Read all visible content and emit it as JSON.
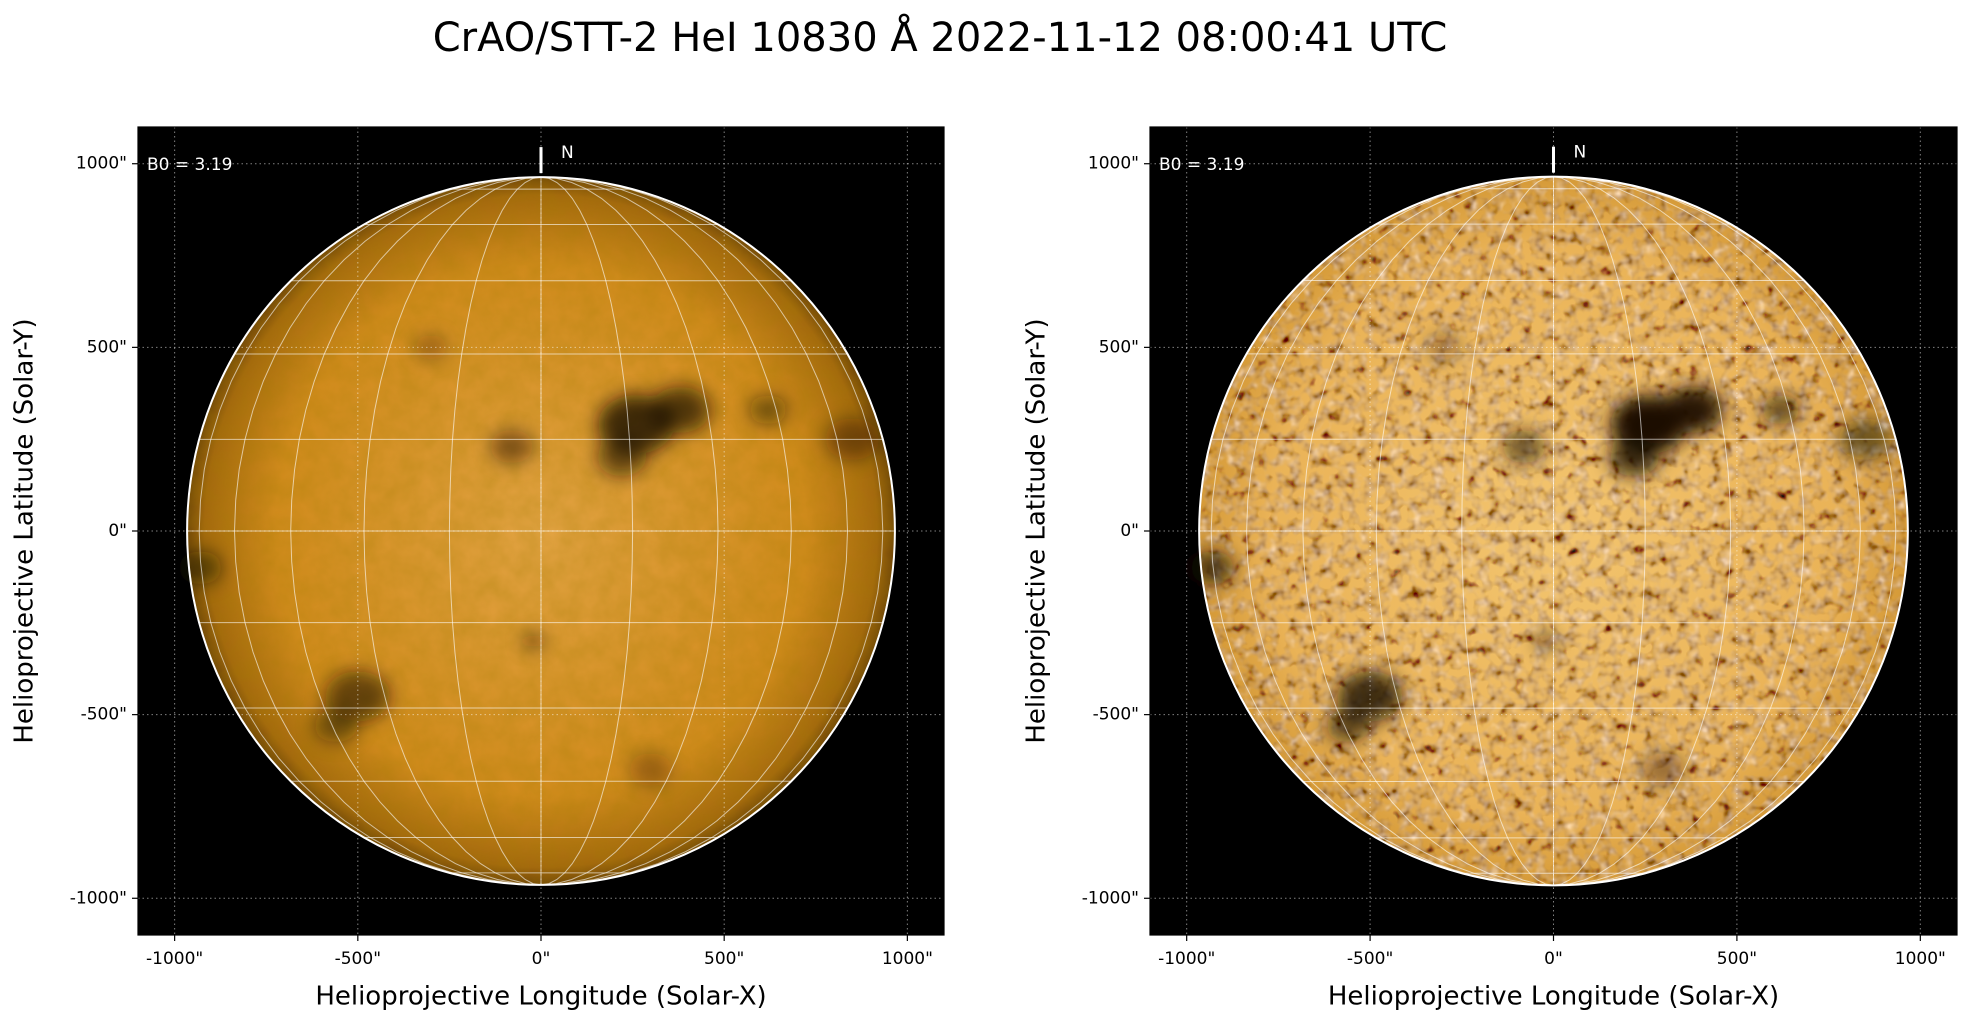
{
  "title": "CrAO/STT-2 HeI 10830 Å 2022-11-12 08:00:41 UTC",
  "chart_data": [
    {
      "type": "image",
      "x_label": "Helioprojective Longitude (Solar-X)",
      "y_label": "Helioprojective Latitude (Solar-Y)",
      "annotation": "B0 = 3.19",
      "north_label": "N",
      "grid": true,
      "xlim": [
        -1100,
        1100
      ],
      "ylim": [
        -1100,
        1100
      ],
      "xticks": [
        {
          "value": -1000,
          "label": "-1000\""
        },
        {
          "value": -500,
          "label": "-500\""
        },
        {
          "value": 0,
          "label": "0\""
        },
        {
          "value": 500,
          "label": "500\""
        },
        {
          "value": 1000,
          "label": "1000\""
        }
      ],
      "yticks": [
        {
          "value": -1000,
          "label": "-1000\""
        },
        {
          "value": -500,
          "label": "-500\""
        },
        {
          "value": 0,
          "label": "0\""
        },
        {
          "value": 500,
          "label": "500\""
        },
        {
          "value": 1000,
          "label": "1000\""
        }
      ]
    },
    {
      "type": "image",
      "x_label": "Helioprojective Longitude (Solar-X)",
      "y_label": "Helioprojective Latitude (Solar-Y)",
      "annotation": "B0 = 3.19",
      "north_label": "N",
      "grid": true,
      "xlim": [
        -1100,
        1100
      ],
      "ylim": [
        -1100,
        1100
      ],
      "xticks": [
        {
          "value": -1000,
          "label": "-1000\""
        },
        {
          "value": -500,
          "label": "-500\""
        },
        {
          "value": 0,
          "label": "0\""
        },
        {
          "value": 500,
          "label": "500\""
        },
        {
          "value": 1000,
          "label": "1000\""
        }
      ],
      "yticks": [
        {
          "value": -1000,
          "label": "-1000\""
        },
        {
          "value": -500,
          "label": "-500\""
        },
        {
          "value": 0,
          "label": "0\""
        },
        {
          "value": 500,
          "label": "500\""
        },
        {
          "value": 1000,
          "label": "1000\""
        }
      ]
    }
  ]
}
